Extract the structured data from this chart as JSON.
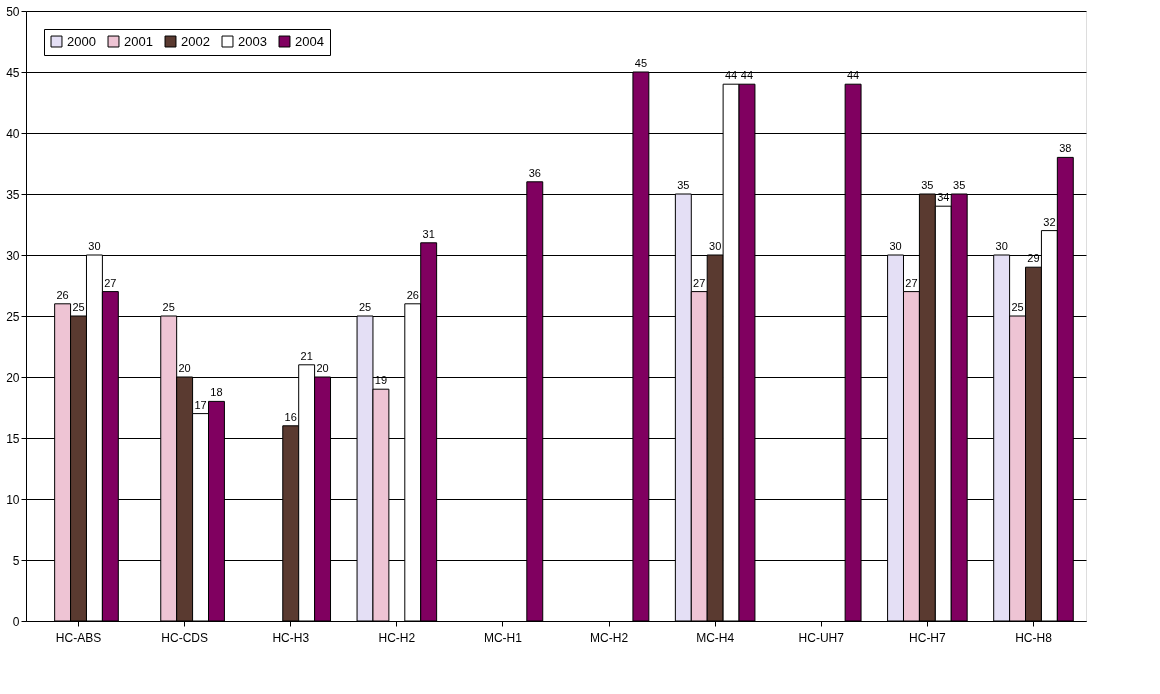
{
  "chart_data": {
    "type": "bar",
    "categories": [
      "HC-ABS",
      "HC-CDS",
      "HC-H3",
      "HC-H2",
      "MC-H1",
      "MC-H2",
      "MC-H4",
      "HC-UH7",
      "HC-H7",
      "HC-H8"
    ],
    "series": [
      {
        "name": "2000",
        "color": "#e4dff5",
        "values": [
          null,
          null,
          null,
          25,
          null,
          null,
          35,
          null,
          30,
          30
        ]
      },
      {
        "name": "2001",
        "color": "#eec4d4",
        "values": [
          26,
          25,
          null,
          19,
          null,
          null,
          27,
          null,
          27,
          25
        ]
      },
      {
        "name": "2002",
        "color": "#5a3a30",
        "values": [
          25,
          20,
          16,
          null,
          null,
          null,
          30,
          null,
          35,
          29
        ]
      },
      {
        "name": "2003",
        "color": "#ffffff",
        "values": [
          30,
          17,
          21,
          26,
          null,
          null,
          44,
          null,
          34,
          32
        ]
      },
      {
        "name": "2004",
        "color": "#800060",
        "values": [
          27,
          18,
          20,
          31,
          36,
          45,
          44,
          44,
          35,
          38
        ]
      }
    ],
    "ylim": [
      0,
      50
    ],
    "yticks": [
      0,
      5,
      10,
      15,
      20,
      25,
      30,
      35,
      40,
      45,
      50
    ],
    "grid": "y",
    "legend": "top left",
    "data_labels": true
  }
}
